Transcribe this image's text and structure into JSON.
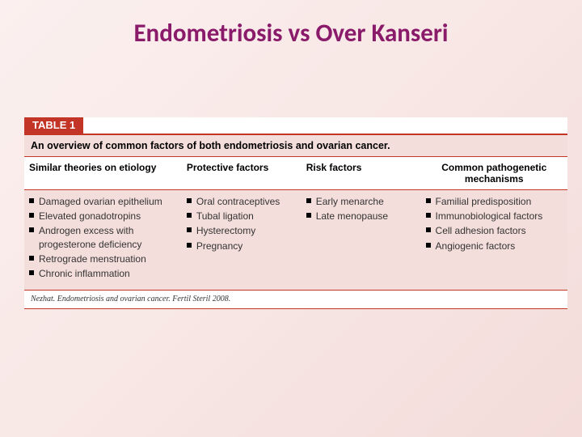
{
  "title": "Endometriosis vs Over Kanseri",
  "table": {
    "label": "TABLE 1",
    "caption": "An overview of common factors of both endometriosis and ovarian cancer.",
    "columns": [
      {
        "header": "Similar theories on etiology",
        "width": "29%",
        "align": "left",
        "items": [
          "Damaged ovarian epithelium",
          "Elevated gonadotropins",
          "Androgen excess with progesterone deficiency",
          "Retrograde menstruation",
          "Chronic inflammation"
        ]
      },
      {
        "header": "Protective factors",
        "width": "22%",
        "align": "left",
        "items": [
          "Oral contraceptives",
          "Tubal ligation",
          "Hysterectomy",
          "Pregnancy"
        ]
      },
      {
        "header": "Risk factors",
        "width": "22%",
        "align": "left",
        "items": [
          "Early menarche",
          "Late menopause"
        ]
      },
      {
        "header": "Common pathogenetic mechanisms",
        "width": "27%",
        "align": "center",
        "items": [
          "Familial predisposition",
          "Immunobiological factors",
          "Cell adhesion factors",
          "Angiogenic factors"
        ]
      }
    ],
    "source": "Nezhat. Endometriosis and ovarian cancer. Fertil Steril 2008."
  },
  "colors": {
    "title": "#8a1a6a",
    "accent": "#c33527",
    "cell_bg": "#f4dedb",
    "page_grad_start": "#fbf0ef",
    "page_grad_end": "#f3dcda"
  }
}
